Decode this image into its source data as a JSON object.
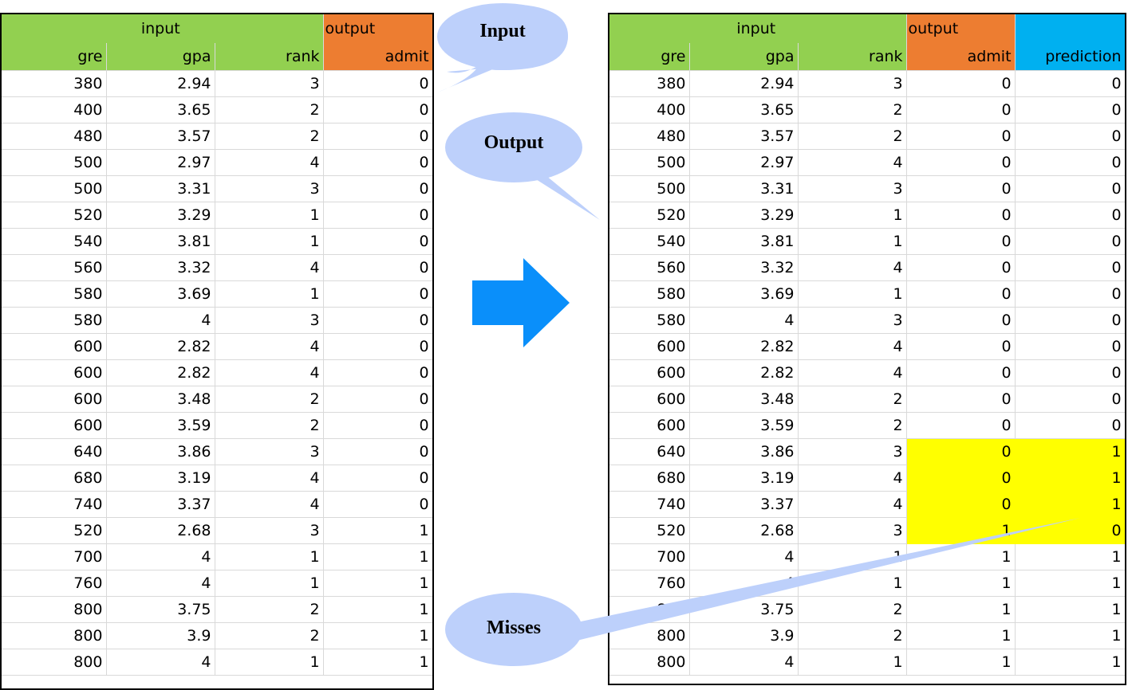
{
  "left_table": {
    "group_headers": {
      "input": "input",
      "output": "output"
    },
    "columns": [
      "gre",
      "gpa",
      "rank",
      "admit"
    ],
    "rows": [
      [
        "380",
        "2.94",
        "3",
        "0"
      ],
      [
        "400",
        "3.65",
        "2",
        "0"
      ],
      [
        "480",
        "3.57",
        "2",
        "0"
      ],
      [
        "500",
        "2.97",
        "4",
        "0"
      ],
      [
        "500",
        "3.31",
        "3",
        "0"
      ],
      [
        "520",
        "3.29",
        "1",
        "0"
      ],
      [
        "540",
        "3.81",
        "1",
        "0"
      ],
      [
        "560",
        "3.32",
        "4",
        "0"
      ],
      [
        "580",
        "3.69",
        "1",
        "0"
      ],
      [
        "580",
        "4",
        "3",
        "0"
      ],
      [
        "600",
        "2.82",
        "4",
        "0"
      ],
      [
        "600",
        "2.82",
        "4",
        "0"
      ],
      [
        "600",
        "3.48",
        "2",
        "0"
      ],
      [
        "600",
        "3.59",
        "2",
        "0"
      ],
      [
        "640",
        "3.86",
        "3",
        "0"
      ],
      [
        "680",
        "3.19",
        "4",
        "0"
      ],
      [
        "740",
        "3.37",
        "4",
        "0"
      ],
      [
        "520",
        "2.68",
        "3",
        "1"
      ],
      [
        "700",
        "4",
        "1",
        "1"
      ],
      [
        "760",
        "4",
        "1",
        "1"
      ],
      [
        "800",
        "3.75",
        "2",
        "1"
      ],
      [
        "800",
        "3.9",
        "2",
        "1"
      ],
      [
        "800",
        "4",
        "1",
        "1"
      ]
    ]
  },
  "right_table": {
    "group_headers": {
      "input": "input",
      "output": "output"
    },
    "columns": [
      "gre",
      "gpa",
      "rank",
      "admit",
      "prediction"
    ],
    "rows": [
      [
        "380",
        "2.94",
        "3",
        "0",
        "0"
      ],
      [
        "400",
        "3.65",
        "2",
        "0",
        "0"
      ],
      [
        "480",
        "3.57",
        "2",
        "0",
        "0"
      ],
      [
        "500",
        "2.97",
        "4",
        "0",
        "0"
      ],
      [
        "500",
        "3.31",
        "3",
        "0",
        "0"
      ],
      [
        "520",
        "3.29",
        "1",
        "0",
        "0"
      ],
      [
        "540",
        "3.81",
        "1",
        "0",
        "0"
      ],
      [
        "560",
        "3.32",
        "4",
        "0",
        "0"
      ],
      [
        "580",
        "3.69",
        "1",
        "0",
        "0"
      ],
      [
        "580",
        "4",
        "3",
        "0",
        "0"
      ],
      [
        "600",
        "2.82",
        "4",
        "0",
        "0"
      ],
      [
        "600",
        "2.82",
        "4",
        "0",
        "0"
      ],
      [
        "600",
        "3.48",
        "2",
        "0",
        "0"
      ],
      [
        "600",
        "3.59",
        "2",
        "0",
        "0"
      ],
      [
        "640",
        "3.86",
        "3",
        "0",
        "1"
      ],
      [
        "680",
        "3.19",
        "4",
        "0",
        "1"
      ],
      [
        "740",
        "3.37",
        "4",
        "0",
        "1"
      ],
      [
        "520",
        "2.68",
        "3",
        "1",
        "0"
      ],
      [
        "700",
        "4",
        "1",
        "1",
        "1"
      ],
      [
        "760",
        "4",
        "1",
        "1",
        "1"
      ],
      [
        "800",
        "3.75",
        "2",
        "1",
        "1"
      ],
      [
        "800",
        "3.9",
        "2",
        "1",
        "1"
      ],
      [
        "800",
        "4",
        "1",
        "1",
        "1"
      ]
    ],
    "highlighted_rows": [
      14,
      15,
      16,
      17
    ]
  },
  "callouts": {
    "input": "Input",
    "output": "Output",
    "misses": "Misses"
  },
  "colors": {
    "input_header": "#92d050",
    "output_header": "#ed7d31",
    "prediction_header": "#00b0f0",
    "highlight": "#ffff00",
    "bubble_fill": "#bdd0fb",
    "arrow": "#0a8ffa"
  }
}
